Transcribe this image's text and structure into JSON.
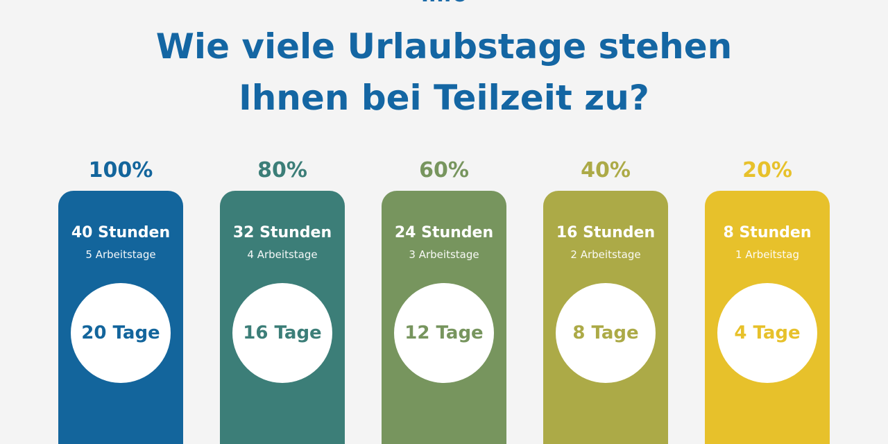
{
  "header": {
    "cut_text": "Info",
    "title_line1": "Wie viele Urlaubstage stehen",
    "title_line2": "Ihnen bei Teilzeit zu?"
  },
  "columns": [
    {
      "percent": "100%",
      "hours": "40 Stunden",
      "workdays": "5 Arbeitstage",
      "vacation": "20 Tage",
      "color": "#13659c",
      "label_color": "#13659c"
    },
    {
      "percent": "80%",
      "hours": "32 Stunden",
      "workdays": "4 Arbeitstage",
      "vacation": "16 Tage",
      "color": "#3c7e78",
      "label_color": "#3c7e78"
    },
    {
      "percent": "60%",
      "hours": "24 Stunden",
      "workdays": "3 Arbeitstage",
      "vacation": "12 Tage",
      "color": "#77955e",
      "label_color": "#77955e"
    },
    {
      "percent": "40%",
      "hours": "16 Stunden",
      "workdays": "2 Arbeitstage",
      "vacation": "8 Tage",
      "color": "#acaa47",
      "label_color": "#acaa47"
    },
    {
      "percent": "20%",
      "hours": "8 Stunden",
      "workdays": "1 Arbeitstag",
      "vacation": "4 Tage",
      "color": "#e7c12b",
      "label_color": "#e7c12b"
    }
  ]
}
